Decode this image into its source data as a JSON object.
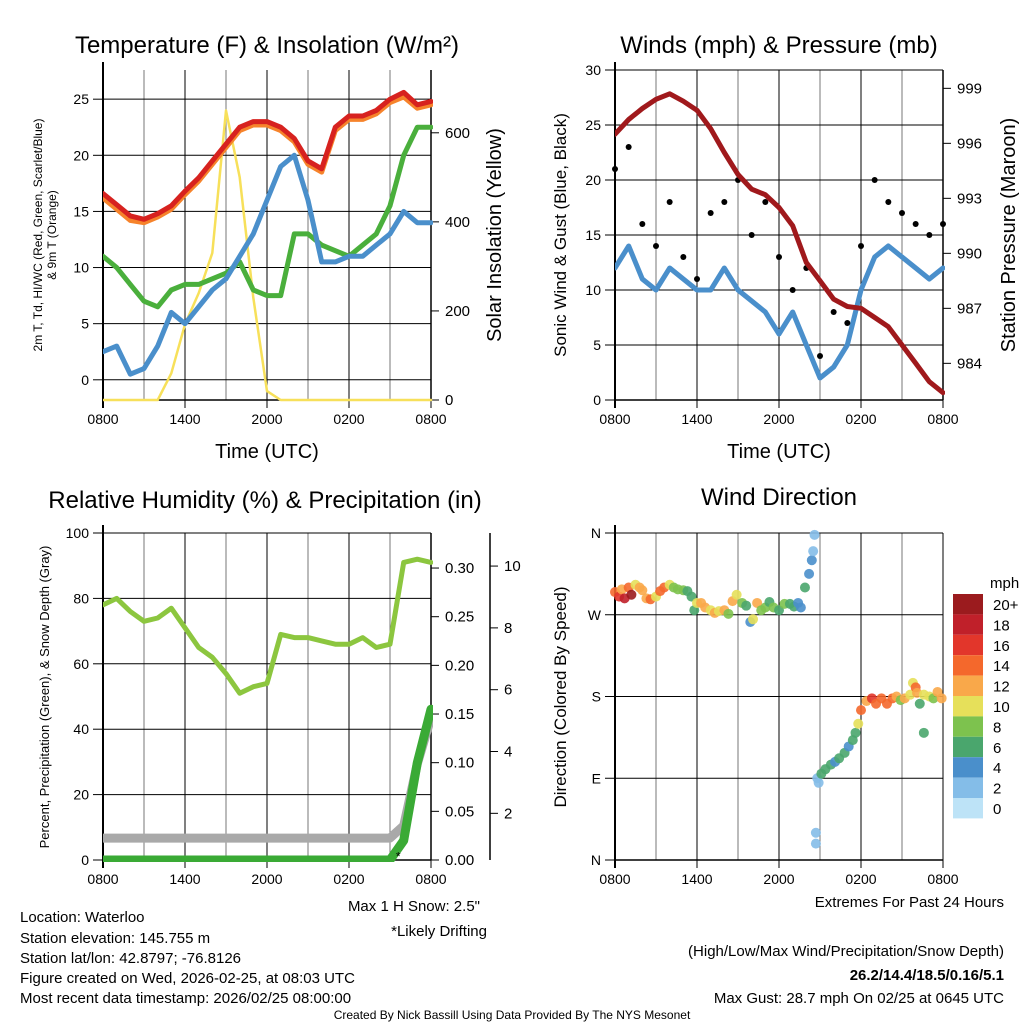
{
  "colors": {
    "temp_red": "#d7221f",
    "temp_9m_orange": "#f6832b",
    "hiwc_green": "#4aaf3c",
    "dewpoint_blue": "#4a8fcb",
    "solar_yellow": "#f7e05a",
    "gust_black": "#000000",
    "pressure_maroon": "#a0191c",
    "rh_green": "#8cc63f",
    "precip_green": "#3aaa35",
    "snow_gray": "#a9a9a9",
    "extremes_red": "#c8202a",
    "drifting_purple": "#a83cf0",
    "credit_gray": "#888888"
  },
  "chart_data": [
    {
      "type": "line",
      "title": "Temperature (F) & Insolation (W/m²)",
      "xlabel": "Time (UTC)",
      "ylabel_line1": "2m T, Td, HI/WC (Red, Green, Scarlet/Blue)",
      "ylabel_line2": "& 9m T (Orange)",
      "ylabel_right": "Solar Insolation (Yellow)",
      "x_hours": [
        0,
        1,
        2,
        3,
        4,
        5,
        6,
        7,
        8,
        9,
        10,
        11,
        12,
        13,
        14,
        15,
        16,
        17,
        18,
        19,
        20,
        21,
        22,
        23,
        24
      ],
      "x_ticks": [
        {
          "hour": 0,
          "label": "0800"
        },
        {
          "hour": 6,
          "label": "1400"
        },
        {
          "hour": 12,
          "label": "2000"
        },
        {
          "hour": 18,
          "label": "0200"
        },
        {
          "hour": 24,
          "label": "0800"
        }
      ],
      "ylim": [
        -1.8,
        27.6
      ],
      "yticks": [
        0,
        5,
        10,
        15,
        20,
        25
      ],
      "ylim_right": [
        0,
        741
      ],
      "yticks_right": [
        0,
        200,
        400,
        600
      ],
      "grid": true,
      "series": [
        {
          "name": "Solar Insolation",
          "axis": "right",
          "color_key": "solar_yellow",
          "values": [
            0,
            0,
            0,
            0,
            0,
            60,
            170,
            240,
            330,
            650,
            500,
            230,
            20,
            0,
            0,
            0,
            0,
            0,
            0,
            0,
            0,
            0,
            0,
            0,
            0
          ]
        },
        {
          "name": "9m T",
          "axis": "left",
          "color_key": "temp_9m_orange",
          "values": [
            16.2,
            15.2,
            14.2,
            14.0,
            14.5,
            15.2,
            16.5,
            17.7,
            19.2,
            20.7,
            22.2,
            22.7,
            22.7,
            22.2,
            21.2,
            19.2,
            18.5,
            22.2,
            23.2,
            23.2,
            23.7,
            24.7,
            25.2,
            24.2,
            24.5
          ]
        },
        {
          "name": "2m T",
          "axis": "left",
          "color_key": "temp_red",
          "values": [
            16.6,
            15.6,
            14.6,
            14.3,
            14.8,
            15.5,
            16.8,
            18.0,
            19.5,
            21.0,
            22.5,
            23.0,
            23.0,
            22.5,
            21.5,
            19.5,
            18.8,
            22.5,
            23.5,
            23.5,
            24.0,
            25.0,
            25.6,
            24.5,
            24.8
          ]
        },
        {
          "name": "HI/WC",
          "axis": "left",
          "color_key": "hiwc_green",
          "values": [
            11,
            10,
            8.5,
            7,
            6.5,
            8,
            8.5,
            8.5,
            9,
            9.5,
            10.5,
            8,
            7.5,
            7.5,
            13,
            13,
            12,
            11.5,
            11,
            12,
            13,
            15.5,
            20,
            22.5,
            22.5
          ]
        },
        {
          "name": "Dewpoint",
          "axis": "left",
          "color_key": "dewpoint_blue",
          "values": [
            2.5,
            3,
            0.5,
            1,
            3,
            6,
            5,
            6.5,
            8,
            9,
            11,
            13,
            16,
            19,
            20,
            16,
            10.5,
            10.5,
            11,
            11,
            12,
            13,
            15,
            14,
            14
          ]
        }
      ]
    },
    {
      "type": "line",
      "title": "Winds (mph) & Pressure (mb)",
      "xlabel": "Time (UTC)",
      "ylabel": "Sonic Wind & Gust (Blue, Black)",
      "ylabel_right": "Station Pressure (Maroon)",
      "x_hours": [
        0,
        1,
        2,
        3,
        4,
        5,
        6,
        7,
        8,
        9,
        10,
        11,
        12,
        13,
        14,
        15,
        16,
        17,
        18,
        19,
        20,
        21,
        22,
        23,
        24
      ],
      "x_ticks": [
        {
          "hour": 0,
          "label": "0800"
        },
        {
          "hour": 6,
          "label": "1400"
        },
        {
          "hour": 12,
          "label": "2000"
        },
        {
          "hour": 18,
          "label": "0200"
        },
        {
          "hour": 24,
          "label": "0800"
        }
      ],
      "ylim": [
        0,
        30
      ],
      "yticks": [
        0,
        5,
        10,
        15,
        20,
        25,
        30
      ],
      "ylim_right": [
        982,
        1000
      ],
      "yticks_right": [
        984,
        987,
        990,
        993,
        996,
        999
      ],
      "grid": true,
      "series": [
        {
          "name": "Sonic Wind",
          "axis": "left",
          "style": "line",
          "color_key": "dewpoint_blue",
          "values": [
            12,
            14,
            11,
            10,
            12,
            11,
            10,
            10,
            12,
            10,
            9,
            8,
            6,
            8,
            5,
            2,
            3,
            5,
            10,
            13,
            14,
            13,
            12,
            11,
            12
          ]
        },
        {
          "name": "Gust",
          "axis": "left",
          "style": "dots",
          "color_key": "gust_black",
          "values": [
            21,
            23,
            16,
            14,
            18,
            13,
            11,
            17,
            18,
            20,
            15,
            18,
            13,
            10,
            12,
            4,
            8,
            7,
            14,
            20,
            18,
            17,
            16,
            15,
            16
          ]
        },
        {
          "name": "Station Pressure",
          "axis": "right",
          "style": "line",
          "color_key": "pressure_maroon",
          "values": [
            996.5,
            997.3,
            997.9,
            998.4,
            998.7,
            998.3,
            997.8,
            996.8,
            995.5,
            994.3,
            993.5,
            993.2,
            992.5,
            991.5,
            989.5,
            988.5,
            987.5,
            987.1,
            987.0,
            986.5,
            986.0,
            985.0,
            984.0,
            983.0,
            982.4
          ]
        }
      ]
    },
    {
      "type": "line",
      "title": "Relative Humidity (%) & Precipitation (in)",
      "xlabel": "",
      "ylabel": "Percent, Precipitation (Green), & Snow Depth (Gray)",
      "x_hours": [
        0,
        1,
        2,
        3,
        4,
        5,
        6,
        7,
        8,
        9,
        10,
        11,
        12,
        13,
        14,
        15,
        16,
        17,
        18,
        19,
        20,
        21,
        22,
        23,
        24
      ],
      "x_ticks": [
        {
          "hour": 0,
          "label": "0800"
        },
        {
          "hour": 6,
          "label": "1400"
        },
        {
          "hour": 12,
          "label": "2000"
        },
        {
          "hour": 18,
          "label": "0200"
        },
        {
          "hour": 24,
          "label": "0800"
        }
      ],
      "ylim": [
        0,
        100
      ],
      "yticks": [
        0,
        20,
        40,
        60,
        80,
        100
      ],
      "ylim_right": [
        0,
        0.336
      ],
      "yticks_right": [
        {
          "v": 0,
          "label": "0.00"
        },
        {
          "v": 0.05,
          "label": "0.05"
        },
        {
          "v": 0.1,
          "label": "0.10"
        },
        {
          "v": 0.15,
          "label": "0.15"
        },
        {
          "v": 0.2,
          "label": "0.20"
        },
        {
          "v": 0.25,
          "label": "0.25"
        },
        {
          "v": 0.3,
          "label": "0.30"
        }
      ],
      "ylim_snow": [
        0.49,
        11.07
      ],
      "yticks_snow": [
        2,
        4,
        6,
        8,
        10
      ],
      "grid": true,
      "series": [
        {
          "name": "Snow Depth",
          "axis": "snow",
          "color_key": "snow_gray",
          "values": [
            1.2,
            1.2,
            1.2,
            1.2,
            1.2,
            1.2,
            1.2,
            1.2,
            1.2,
            1.2,
            1.2,
            1.2,
            1.2,
            1.2,
            1.2,
            1.2,
            1.2,
            1.2,
            1.2,
            1.2,
            1.2,
            1.2,
            1.6,
            3.6,
            5.1
          ]
        },
        {
          "name": "Relative Humidity",
          "axis": "left",
          "color_key": "rh_green",
          "values": [
            78,
            80,
            76,
            73,
            74,
            77,
            71,
            65,
            62,
            57,
            51,
            53,
            54,
            69,
            68,
            68,
            67,
            66,
            66,
            68,
            65,
            66,
            91,
            92,
            91
          ]
        },
        {
          "name": "Precipitation",
          "axis": "right",
          "color_key": "precip_green",
          "values": [
            0,
            0,
            0,
            0,
            0,
            0,
            0,
            0,
            0,
            0,
            0,
            0,
            0,
            0,
            0,
            0,
            0,
            0,
            0,
            0,
            0,
            0,
            0.02,
            0.1,
            0.155
          ]
        }
      ],
      "max_snow_label": "Max 1 H Snow: 2.5\"",
      "drifting_label": "*Likely Drifting"
    },
    {
      "type": "scatter",
      "title": "Wind Direction",
      "ylabel": "Direction (Colored By Speed)",
      "x_ticks": [
        {
          "hour": 0,
          "label": "0800"
        },
        {
          "hour": 6,
          "label": "1400"
        },
        {
          "hour": 12,
          "label": "2000"
        },
        {
          "hour": 18,
          "label": "0200"
        },
        {
          "hour": 24,
          "label": "0800"
        }
      ],
      "ylim": [
        0,
        360
      ],
      "yticks": [
        {
          "v": 360,
          "label": "N"
        },
        {
          "v": 270,
          "label": "W"
        },
        {
          "v": 180,
          "label": "S"
        },
        {
          "v": 90,
          "label": "E"
        },
        {
          "v": 0,
          "label": "N"
        }
      ],
      "colorbar": {
        "title": "mph",
        "bins": [
          {
            "label": "20+",
            "color": "#9b1b1e"
          },
          {
            "label": "18",
            "color": "#c0202a"
          },
          {
            "label": "16",
            "color": "#e2362b"
          },
          {
            "label": "14",
            "color": "#f4682c"
          },
          {
            "label": "12",
            "color": "#f9a84a"
          },
          {
            "label": "10",
            "color": "#e6e05a"
          },
          {
            "label": "8",
            "color": "#7dc24e"
          },
          {
            "label": "6",
            "color": "#4aa66d"
          },
          {
            "label": "4",
            "color": "#4a8fcb"
          },
          {
            "label": "2",
            "color": "#84bde8"
          },
          {
            "label": "0",
            "color": "#bde3f7"
          }
        ]
      },
      "points_hour_dir_speed": [
        [
          0.0,
          295,
          14
        ],
        [
          0.3,
          290,
          16
        ],
        [
          0.5,
          298,
          13
        ],
        [
          0.7,
          288,
          18
        ],
        [
          1.0,
          300,
          15
        ],
        [
          1.2,
          292,
          20
        ],
        [
          1.5,
          303,
          11
        ],
        [
          1.8,
          300,
          12
        ],
        [
          2.0,
          297,
          13
        ],
        [
          2.3,
          288,
          12
        ],
        [
          2.6,
          287,
          14
        ],
        [
          3.0,
          290,
          10
        ],
        [
          3.3,
          296,
          14
        ],
        [
          3.6,
          300,
          15
        ],
        [
          4.0,
          303,
          10
        ],
        [
          4.3,
          300,
          9
        ],
        [
          4.6,
          298,
          9
        ],
        [
          5.0,
          297,
          8
        ],
        [
          5.3,
          296,
          7
        ],
        [
          5.6,
          290,
          7
        ],
        [
          5.8,
          275,
          6
        ],
        [
          6.0,
          283,
          10
        ],
        [
          6.3,
          283,
          12
        ],
        [
          6.6,
          278,
          12
        ],
        [
          7.0,
          275,
          11
        ],
        [
          7.3,
          272,
          12
        ],
        [
          7.6,
          274,
          11
        ],
        [
          8.0,
          275,
          12
        ],
        [
          8.3,
          271,
          8
        ],
        [
          8.6,
          285,
          12
        ],
        [
          8.9,
          292,
          11
        ],
        [
          9.3,
          283,
          8
        ],
        [
          9.6,
          280,
          7
        ],
        [
          9.9,
          262,
          4
        ],
        [
          10.1,
          265,
          10
        ],
        [
          10.4,
          283,
          12
        ],
        [
          10.7,
          275,
          9
        ],
        [
          11.0,
          278,
          8
        ],
        [
          11.3,
          284,
          7
        ],
        [
          11.6,
          278,
          8
        ],
        [
          12.0,
          275,
          7
        ],
        [
          12.4,
          282,
          8
        ],
        [
          12.8,
          282,
          6
        ],
        [
          13.1,
          279,
          7
        ],
        [
          13.4,
          283,
          4
        ],
        [
          13.6,
          278,
          4
        ],
        [
          13.9,
          300,
          6
        ],
        [
          14.2,
          315,
          4
        ],
        [
          14.4,
          330,
          4
        ],
        [
          14.5,
          340,
          2
        ],
        [
          14.6,
          358,
          2
        ],
        [
          14.7,
          18,
          2
        ],
        [
          14.7,
          30,
          2
        ],
        [
          14.8,
          90,
          2
        ],
        [
          14.9,
          85,
          2
        ],
        [
          15.1,
          95,
          6
        ],
        [
          15.4,
          100,
          6
        ],
        [
          15.8,
          105,
          6
        ],
        [
          16.1,
          108,
          4
        ],
        [
          16.4,
          112,
          6
        ],
        [
          16.8,
          118,
          6
        ],
        [
          17.1,
          125,
          4
        ],
        [
          17.4,
          132,
          6
        ],
        [
          17.6,
          140,
          7
        ],
        [
          17.8,
          150,
          10
        ],
        [
          18.0,
          165,
          14
        ],
        [
          18.4,
          175,
          12
        ],
        [
          18.8,
          178,
          16
        ],
        [
          19.1,
          172,
          14
        ],
        [
          19.5,
          178,
          14
        ],
        [
          19.9,
          172,
          14
        ],
        [
          20.3,
          178,
          14
        ],
        [
          20.6,
          180,
          12
        ],
        [
          20.9,
          176,
          8
        ],
        [
          21.2,
          178,
          12
        ],
        [
          21.6,
          182,
          10
        ],
        [
          21.8,
          195,
          10
        ],
        [
          22.0,
          190,
          14
        ],
        [
          22.1,
          184,
          12
        ],
        [
          22.3,
          172,
          6
        ],
        [
          22.6,
          182,
          10
        ],
        [
          22.6,
          140,
          6
        ],
        [
          23.0,
          180,
          10
        ],
        [
          23.3,
          178,
          8
        ],
        [
          23.6,
          185,
          12
        ],
        [
          23.9,
          178,
          12
        ]
      ]
    }
  ],
  "info": {
    "location": "Location: Waterloo",
    "elevation": "Station elevation: 145.755 m",
    "latlon": "Station lat/lon: 42.8797; -76.8126",
    "created": "Figure created on Wed, 2026-02-25, at 08:03 UTC",
    "recent": "Most recent data timestamp: 2026/02/25 08:00:00"
  },
  "extremes": {
    "heading": "Extremes For Past 24 Hours",
    "legend": "(High/Low/Max Wind/Precipitation/Snow Depth)",
    "values": "26.2/14.4/18.5/0.16/5.1",
    "max_gust": "Max Gust: 28.7 mph On 02/25 at 0645 UTC"
  },
  "credit": "Created By Nick Bassill Using Data Provided By The NYS Mesonet"
}
